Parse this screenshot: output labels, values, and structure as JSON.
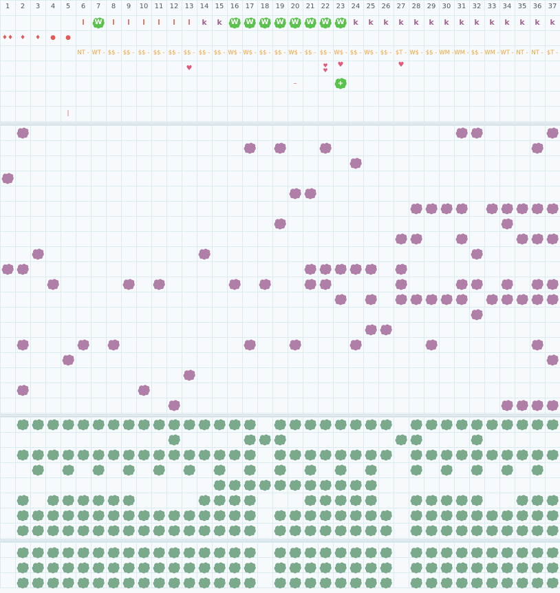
{
  "columns": [
    "1",
    "2",
    "3",
    "4",
    "5",
    "6",
    "7",
    "8",
    "9",
    "10",
    "11",
    "12",
    "13",
    "14",
    "15",
    "16",
    "17",
    "18",
    "19",
    "20",
    "21",
    "22",
    "23",
    "24",
    "25",
    "26",
    "27",
    "28",
    "29",
    "30",
    "31",
    "32",
    "33",
    "34",
    "35",
    "36",
    "37"
  ],
  "colors": {
    "purple": "#b07fa8",
    "green": "#7aa98c",
    "bright_green": "#5cc24e",
    "pink": "#e05a7b",
    "orange": "#f0a33a",
    "red": "#e05a5a"
  },
  "header_row1": [
    {
      "col": 6,
      "text": "l",
      "kind": "letter"
    },
    {
      "col": 7,
      "text": "W",
      "kind": "badge"
    },
    {
      "col": 8,
      "text": "l",
      "kind": "letter"
    },
    {
      "col": 9,
      "text": "l",
      "kind": "letter"
    },
    {
      "col": 10,
      "text": "l",
      "kind": "letter"
    },
    {
      "col": 11,
      "text": "l",
      "kind": "letter"
    },
    {
      "col": 12,
      "text": "l",
      "kind": "letter"
    },
    {
      "col": 13,
      "text": "l",
      "kind": "letter"
    },
    {
      "col": 14,
      "text": "k",
      "kind": "letter"
    },
    {
      "col": 15,
      "text": "k",
      "kind": "letter"
    },
    {
      "col": 16,
      "text": "W",
      "kind": "badge"
    },
    {
      "col": 17,
      "text": "W",
      "kind": "badge"
    },
    {
      "col": 18,
      "text": "W",
      "kind": "badge"
    },
    {
      "col": 19,
      "text": "W",
      "kind": "badge"
    },
    {
      "col": 20,
      "text": "W",
      "kind": "badge"
    },
    {
      "col": 21,
      "text": "W",
      "kind": "badge"
    },
    {
      "col": 22,
      "text": "W",
      "kind": "badge"
    },
    {
      "col": 23,
      "text": "W",
      "kind": "badge"
    },
    {
      "col": 24,
      "text": "k",
      "kind": "letter"
    },
    {
      "col": 25,
      "text": "k",
      "kind": "letter"
    },
    {
      "col": 26,
      "text": "k",
      "kind": "letter"
    },
    {
      "col": 27,
      "text": "k",
      "kind": "letter"
    },
    {
      "col": 28,
      "text": "k",
      "kind": "letter"
    },
    {
      "col": 29,
      "text": "k",
      "kind": "letter"
    },
    {
      "col": 30,
      "text": "k",
      "kind": "letter"
    },
    {
      "col": 31,
      "text": "k",
      "kind": "letter"
    },
    {
      "col": 32,
      "text": "k",
      "kind": "letter"
    },
    {
      "col": 33,
      "text": "k",
      "kind": "letter"
    },
    {
      "col": 34,
      "text": "k",
      "kind": "letter"
    },
    {
      "col": 35,
      "text": "k",
      "kind": "letter"
    },
    {
      "col": 36,
      "text": "k",
      "kind": "letter"
    },
    {
      "col": 37,
      "text": "k",
      "kind": "letter"
    }
  ],
  "header_row2": [
    {
      "col": 1,
      "icon": "double-drop-icon"
    },
    {
      "col": 2,
      "icon": "drop-icon"
    },
    {
      "col": 3,
      "icon": "drop-icon"
    },
    {
      "col": 4,
      "icon": "dot-icon"
    },
    {
      "col": 5,
      "icon": "dot-icon"
    }
  ],
  "header_row3": [
    {
      "col": 6,
      "text": "NT -"
    },
    {
      "col": 7,
      "text": "WT -"
    },
    {
      "col": 8,
      "text": "$$ -"
    },
    {
      "col": 9,
      "text": "$$ -"
    },
    {
      "col": 10,
      "text": "$$ -"
    },
    {
      "col": 11,
      "text": "$$ -"
    },
    {
      "col": 12,
      "text": "$$ -"
    },
    {
      "col": 13,
      "text": "$$ -"
    },
    {
      "col": 14,
      "text": "$$ -"
    },
    {
      "col": 15,
      "text": "$$ -"
    },
    {
      "col": 16,
      "text": "W$ -"
    },
    {
      "col": 17,
      "text": "W$ -"
    },
    {
      "col": 18,
      "text": "$$ -"
    },
    {
      "col": 19,
      "text": "$$ -"
    },
    {
      "col": 20,
      "text": "W$ -"
    },
    {
      "col": 21,
      "text": "$$ -"
    },
    {
      "col": 22,
      "text": "$$ -"
    },
    {
      "col": 23,
      "text": "W$ -"
    },
    {
      "col": 24,
      "text": "$$ -"
    },
    {
      "col": 25,
      "text": "W$ -"
    },
    {
      "col": 26,
      "text": "$$ -"
    },
    {
      "col": 27,
      "text": "$T -"
    },
    {
      "col": 28,
      "text": "W$ -"
    },
    {
      "col": 29,
      "text": "$$ -"
    },
    {
      "col": 30,
      "text": "WM -"
    },
    {
      "col": 31,
      "text": "WM -"
    },
    {
      "col": 32,
      "text": "$$ -"
    },
    {
      "col": 33,
      "text": "WM -"
    },
    {
      "col": 34,
      "text": "WT -"
    },
    {
      "col": 35,
      "text": "NT -"
    },
    {
      "col": 36,
      "text": "NT -"
    },
    {
      "col": 37,
      "text": "$T -"
    }
  ],
  "header_markers": [
    {
      "col": 13,
      "row": 4,
      "icon": "heart-icon"
    },
    {
      "col": 22,
      "row": 4,
      "icon": "double-heart-icon"
    },
    {
      "col": 23,
      "row": 4,
      "icon": "heart-icon",
      "up": true
    },
    {
      "col": 27,
      "row": 4,
      "icon": "heart-icon",
      "up": true
    },
    {
      "col": 20,
      "row": 5,
      "icon": "minus-icon"
    },
    {
      "col": 23,
      "row": 5,
      "icon": "plus-badge-icon"
    },
    {
      "col": 5,
      "row": 7,
      "icon": "tick-icon"
    }
  ],
  "purple_rows": [
    [
      2,
      37,
      31,
      32
    ],
    [
      17,
      19,
      22,
      36
    ],
    [
      24
    ],
    [
      1
    ],
    [
      20,
      21
    ],
    [
      28,
      29,
      30,
      31,
      33,
      34,
      35,
      36,
      37
    ],
    [
      19,
      34
    ],
    [
      27,
      28,
      31,
      35,
      36,
      37
    ],
    [
      3,
      14,
      32
    ],
    [
      1,
      2,
      21,
      22,
      23,
      24,
      25,
      27
    ],
    [
      4,
      9,
      11,
      16,
      18,
      21,
      22,
      27,
      31,
      32,
      34,
      36,
      37
    ],
    [
      23,
      25,
      27,
      28,
      29,
      30,
      31,
      33,
      34,
      35,
      36,
      37
    ],
    [
      32
    ],
    [
      25,
      26
    ],
    [
      2,
      6,
      8,
      17,
      20,
      24,
      29,
      36
    ],
    [
      5,
      37
    ],
    [
      13
    ],
    [
      2,
      10
    ],
    [
      12,
      34,
      35,
      36,
      37
    ]
  ],
  "green_rows_a": [
    [
      2,
      3,
      4,
      5,
      6,
      7,
      8,
      9,
      10,
      11,
      12,
      13,
      14,
      15,
      16,
      17,
      19,
      20,
      21,
      22,
      23,
      24,
      25,
      26,
      28,
      29,
      30,
      31,
      32,
      33,
      34,
      35,
      36,
      37
    ],
    [
      12,
      17,
      18,
      19,
      27,
      28,
      32
    ],
    [
      2,
      3,
      4,
      5,
      6,
      7,
      8,
      9,
      10,
      11,
      12,
      13,
      14,
      15,
      16,
      17,
      19,
      20,
      21,
      22,
      23,
      24,
      25,
      26,
      28,
      29,
      30,
      31,
      32,
      33,
      34,
      35,
      36,
      37
    ],
    [
      3,
      5,
      7,
      9,
      11,
      13,
      15,
      17,
      19,
      21,
      23,
      25,
      28,
      30,
      32,
      34,
      36
    ],
    [
      15,
      16,
      17,
      18,
      19,
      20,
      21,
      22,
      23,
      24,
      25
    ],
    [
      2,
      4,
      5,
      6,
      7,
      8,
      9,
      14,
      15,
      16,
      17,
      21,
      22,
      23,
      24,
      25,
      28,
      29,
      30,
      31,
      32,
      35,
      36,
      37
    ],
    [
      2,
      3,
      4,
      5,
      6,
      7,
      8,
      9,
      10,
      11,
      12,
      13,
      14,
      15,
      16,
      17,
      19,
      20,
      21,
      22,
      23,
      24,
      25,
      26,
      28,
      29,
      30,
      31,
      32,
      33,
      34,
      35,
      36,
      37
    ],
    [
      2,
      3,
      4,
      5,
      6,
      7,
      8,
      9,
      10,
      11,
      12,
      13,
      14,
      15,
      16,
      17,
      19,
      20,
      21,
      22,
      23,
      24,
      25,
      26,
      28,
      29,
      30,
      31,
      32,
      33,
      34,
      35,
      36,
      37
    ]
  ],
  "green_rows_b": [
    [
      2,
      3,
      4,
      5,
      6,
      7,
      8,
      9,
      10,
      11,
      12,
      13,
      14,
      15,
      16,
      17,
      19,
      20,
      21,
      22,
      23,
      24,
      25,
      26,
      28,
      29,
      30,
      31,
      32,
      33,
      34,
      35,
      36,
      37
    ],
    [
      2,
      3,
      4,
      5,
      6,
      7,
      8,
      9,
      10,
      11,
      12,
      13,
      14,
      15,
      16,
      17,
      19,
      20,
      21,
      22,
      23,
      24,
      25,
      26,
      28,
      29,
      30,
      31,
      32,
      33,
      34,
      35,
      36,
      37
    ],
    [
      2,
      3,
      4,
      5,
      6,
      7,
      8,
      9,
      10,
      11,
      12,
      13,
      14,
      15,
      16,
      17,
      19,
      20,
      21,
      22,
      23,
      24,
      25,
      26,
      28,
      29,
      30,
      31,
      32,
      33,
      34,
      35,
      36,
      37
    ]
  ]
}
